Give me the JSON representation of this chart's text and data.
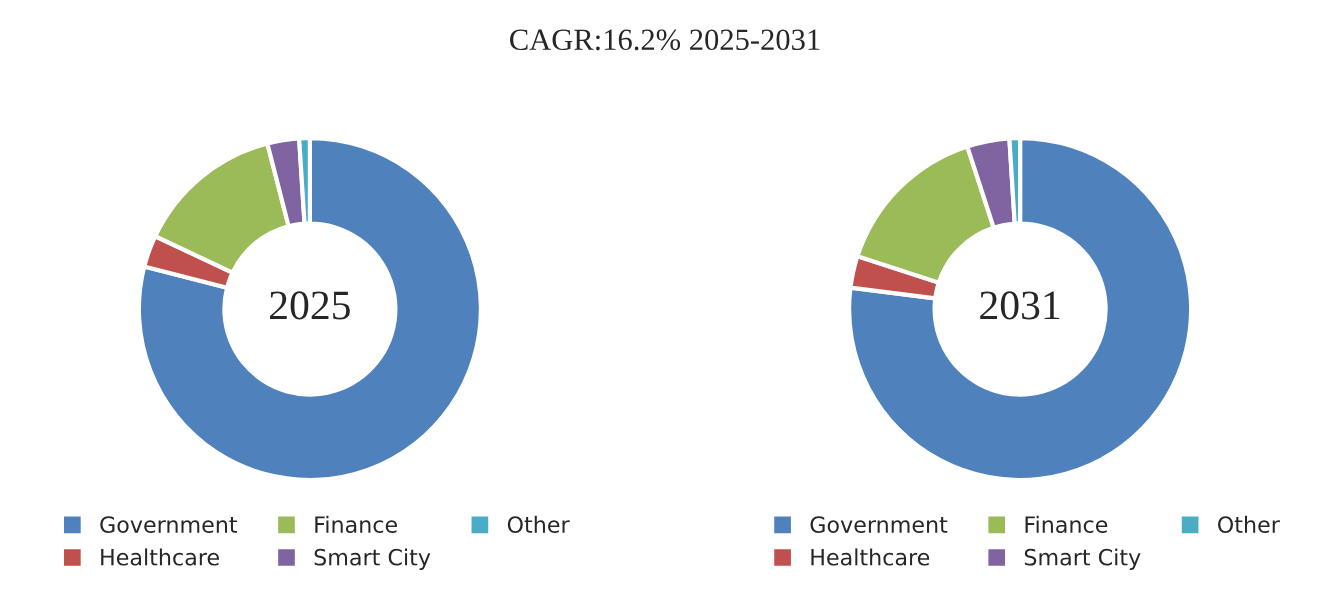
{
  "chart_data": [
    {
      "type": "donut",
      "title": "CAGR:16.2% 2025-2031",
      "annotations": [
        "2025"
      ],
      "categories": [
        "Government",
        "Healthcare",
        "Finance",
        "Smart City",
        "Other"
      ],
      "values": [
        79,
        3,
        14,
        3,
        1
      ],
      "colors": [
        "#4f81bd",
        "#c0504d",
        "#9bbb59",
        "#8064a2",
        "#4bacc6"
      ],
      "legend": "bottom"
    },
    {
      "type": "donut",
      "annotations": [
        "2031"
      ],
      "categories": [
        "Government",
        "Healthcare",
        "Finance",
        "Smart City",
        "Other"
      ],
      "values": [
        77,
        3,
        15,
        4,
        1
      ],
      "colors": [
        "#4f81bd",
        "#c0504d",
        "#9bbb59",
        "#8064a2",
        "#4bacc6"
      ],
      "legend": "bottom"
    }
  ]
}
